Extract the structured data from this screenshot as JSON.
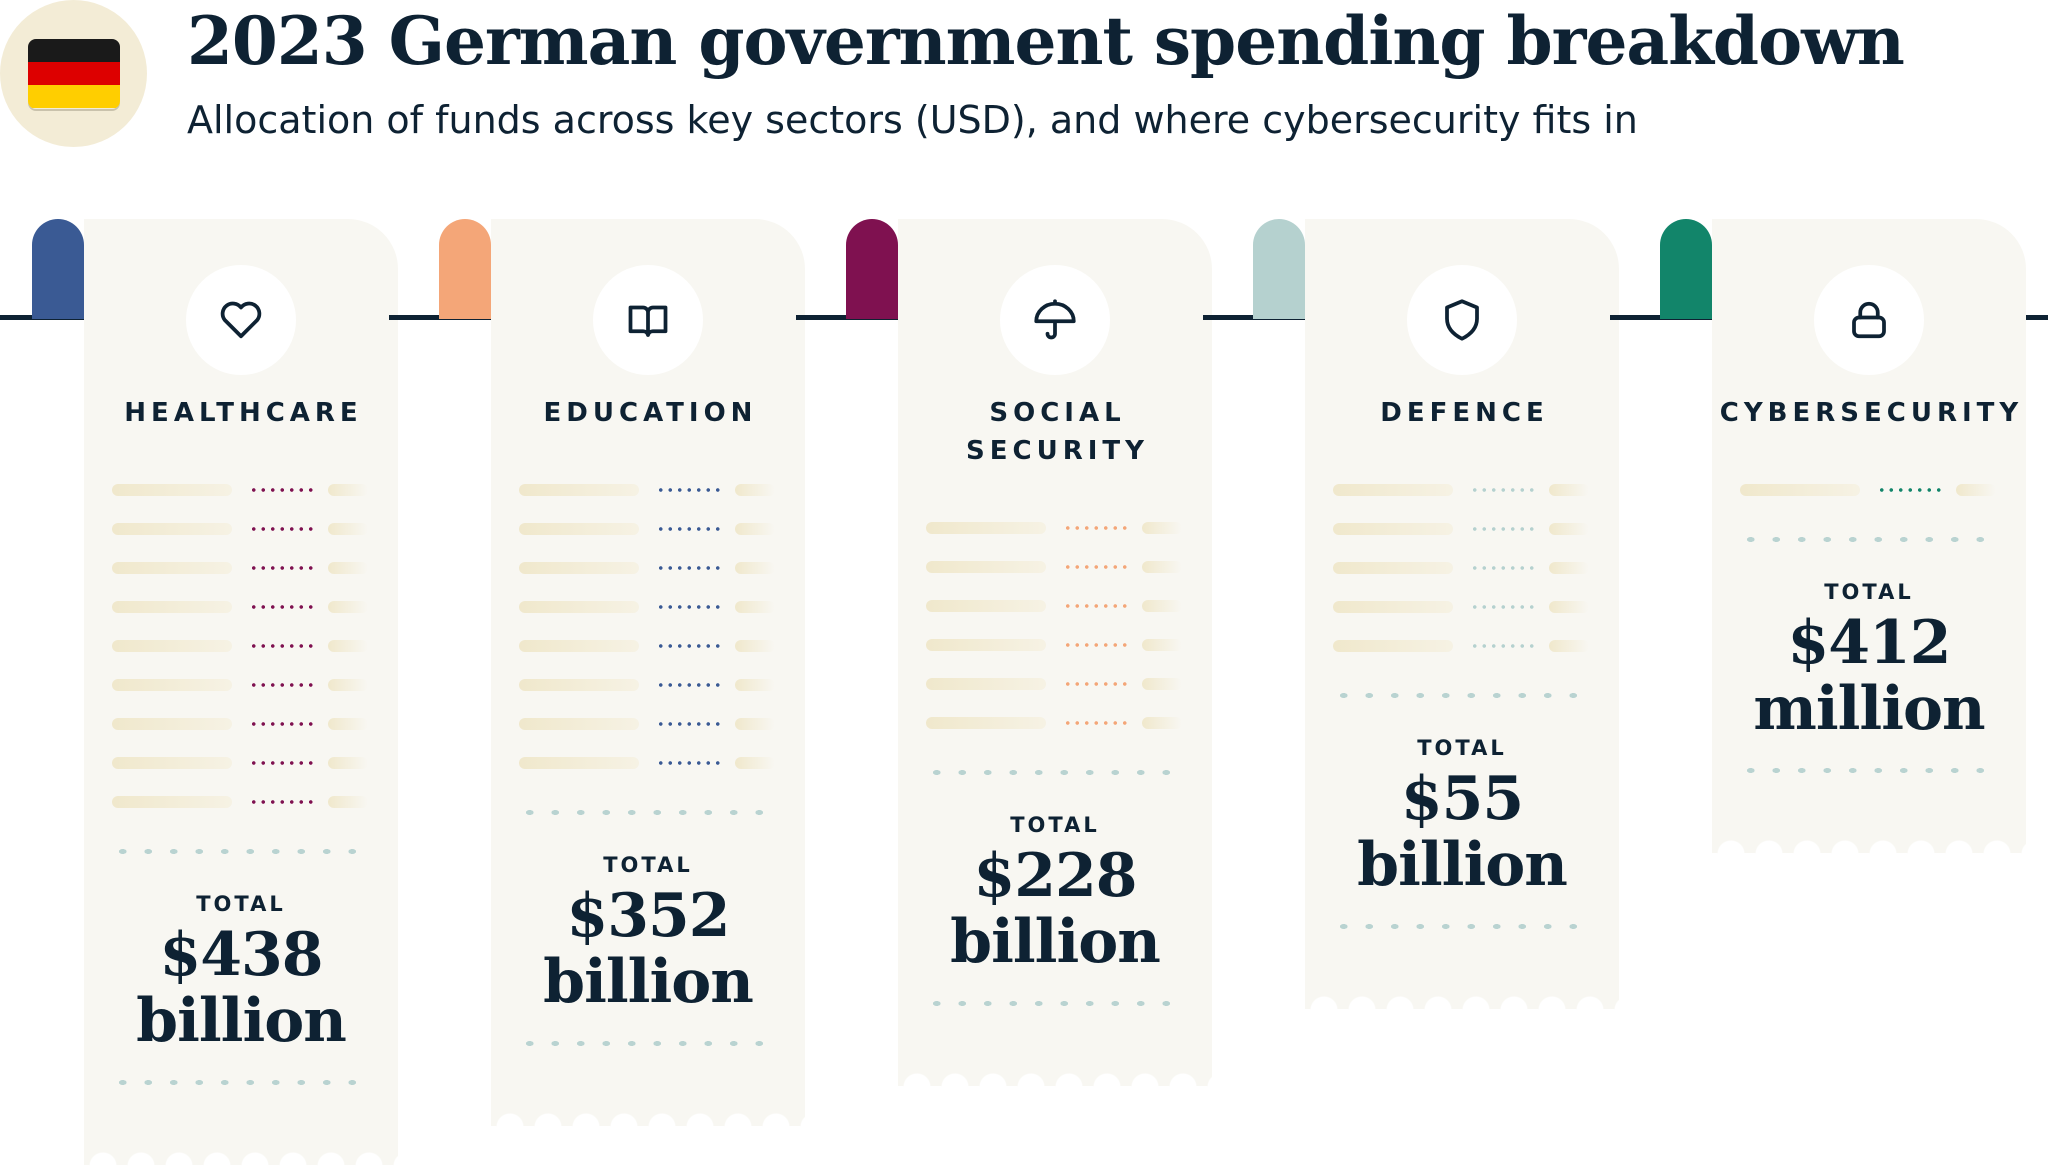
{
  "header": {
    "title": "2023 German government spending breakdown",
    "subtitle": "Allocation of funds across key sectors (USD), and where cybersecurity fits in",
    "flag_colors": [
      "#1a1a1a",
      "#dd0000",
      "#ffce00"
    ]
  },
  "colors": {
    "text": "#0e2233",
    "card": "#f8f7f2",
    "dash": "#b9d3d1"
  },
  "cards": [
    {
      "label": "HEALTHCARE",
      "total_label": "TOTAL",
      "amount": "$438",
      "unit": "billion",
      "icon": "heart-icon",
      "tab_color": "#3a5a94",
      "dot_color": "#7f1150",
      "rows": 9
    },
    {
      "label": "EDUCATION",
      "total_label": "TOTAL",
      "amount": "$352",
      "unit": "billion",
      "icon": "book-icon",
      "tab_color": "#f4a678",
      "dot_color": "#3a5a94",
      "rows": 8
    },
    {
      "label": "SOCIAL SECURITY",
      "total_label": "TOTAL",
      "amount": "$228",
      "unit": "billion",
      "icon": "umbrella-icon",
      "tab_color": "#7f1150",
      "dot_color": "#f4a678",
      "rows": 6
    },
    {
      "label": "DEFENCE",
      "total_label": "TOTAL",
      "amount": "$55",
      "unit": "billion",
      "icon": "shield-icon",
      "tab_color": "#b5d1cf",
      "dot_color": "#b5d1cf",
      "rows": 5
    },
    {
      "label": "CYBERSECURITY",
      "total_label": "TOTAL",
      "amount": "$412",
      "unit": "million",
      "icon": "lock-icon",
      "tab_color": "#12856a",
      "dot_color": "#12856a",
      "rows": 1
    }
  ]
}
